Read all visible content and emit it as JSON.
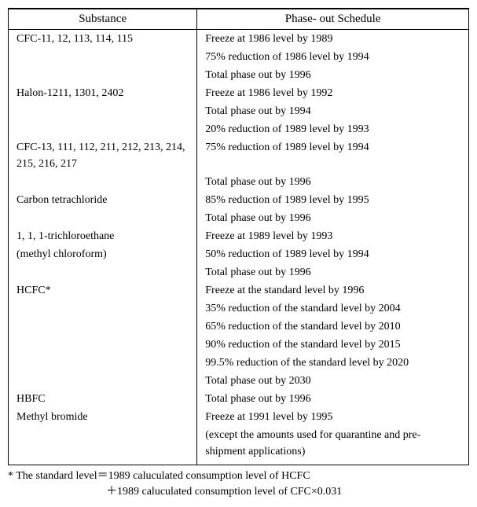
{
  "table": {
    "headers": {
      "substance": "Substance",
      "schedule": "Phase- out Schedule"
    },
    "rows": [
      {
        "substance": "CFC-11, 12, 113, 114, 115",
        "schedule": "Freeze at 1986 level by 1989"
      },
      {
        "substance": "",
        "schedule": "75% reduction of 1986 level by 1994"
      },
      {
        "substance": "",
        "schedule": "Total phase out by 1996"
      },
      {
        "substance": "Halon-1211, 1301, 2402",
        "schedule": "Freeze at 1986 level by 1992"
      },
      {
        "substance": "",
        "schedule": "Total phase out by 1994"
      },
      {
        "substance": "",
        "schedule": "20% reduction of 1989 level by 1993"
      },
      {
        "substance": "CFC-13, 111, 112, 211, 212, 213, 214, 215, 216, 217",
        "schedule": "75% reduction of 1989 level by 1994"
      },
      {
        "substance": "",
        "schedule": "Total phase out by 1996"
      },
      {
        "substance": "Carbon tetrachloride",
        "schedule": "85% reduction of 1989 level by 1995"
      },
      {
        "substance": "",
        "schedule": "Total phase out by 1996"
      },
      {
        "substance": "1, 1, 1-trichloroethane",
        "schedule": "Freeze at 1989 level by 1993"
      },
      {
        "substance": "(methyl chloroform)",
        "schedule": "50% reduction of 1989 level by 1994"
      },
      {
        "substance": "",
        "schedule": "Total phase out by 1996"
      },
      {
        "substance": "HCFC*",
        "schedule": "Freeze at the standard level by 1996"
      },
      {
        "substance": "",
        "schedule": "35% reduction of the standard level by 2004"
      },
      {
        "substance": "",
        "schedule": "65% reduction of the standard level by 2010"
      },
      {
        "substance": "",
        "schedule": "90% reduction of the standard level by 2015"
      },
      {
        "substance": "",
        "schedule": "99.5% reduction of the standard level by 2020"
      },
      {
        "substance": "",
        "schedule": "Total phase out by 2030"
      },
      {
        "substance": "HBFC",
        "schedule": "Total phase out by 1996"
      },
      {
        "substance": "Methyl bromide",
        "schedule": "Freeze at 1991 level by 1995"
      },
      {
        "substance": "",
        "schedule": "(except the amounts used for quarantine and pre-shipment applications)"
      }
    ]
  },
  "footnote": {
    "line1": "* The standard level＝1989 caluculated consumption level of HCFC",
    "line2": "＋1989 caluculated consumption level of CFC×0.031"
  }
}
